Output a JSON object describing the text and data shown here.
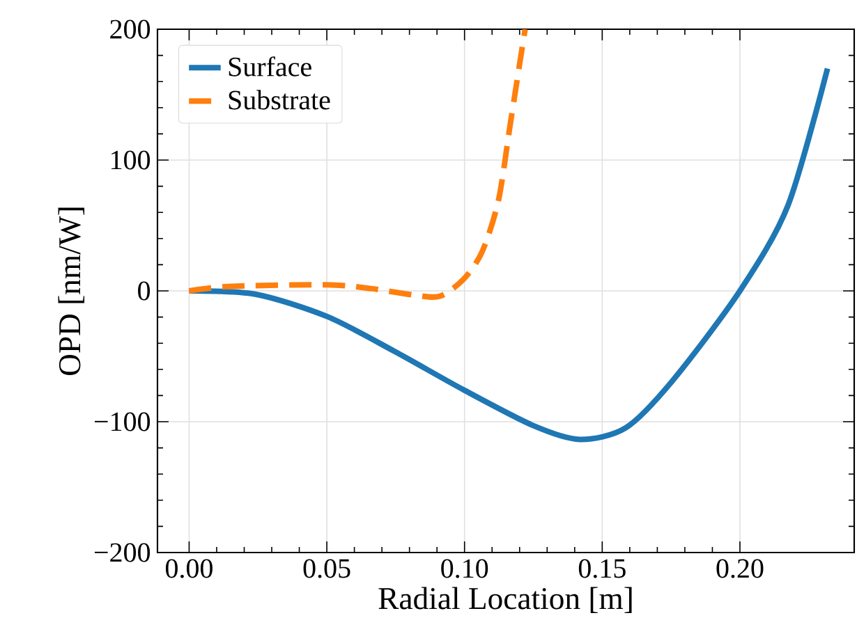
{
  "chart_data": {
    "type": "line",
    "xlabel": "Radial Location [m]",
    "ylabel": "OPD [nm/W]",
    "xlim": [
      -0.0115,
      0.2415
    ],
    "ylim": [
      -200,
      200
    ],
    "xticks": [
      {
        "value": 0,
        "label": "0.00"
      },
      {
        "value": 0.05,
        "label": "0.05"
      },
      {
        "value": 0.1,
        "label": "0.10"
      },
      {
        "value": 0.15,
        "label": "0.15"
      },
      {
        "value": 0.2,
        "label": "0.20"
      }
    ],
    "yticks": [
      {
        "value": -200,
        "label": "−200"
      },
      {
        "value": -100,
        "label": "−100"
      },
      0,
      100,
      200
    ],
    "grid": true,
    "legend": "top left",
    "marker": "none",
    "series": [
      {
        "name": "Surface",
        "color": "#1f77b4",
        "line_style": "solid",
        "x": [
          0,
          0.024,
          0.05,
          0.0744,
          0.1,
          0.125,
          0.1418,
          0.1586,
          0.1754,
          0.2,
          0.2175,
          0.2318
        ],
        "values": [
          0,
          -2.5,
          -19.5,
          -46,
          -76,
          -103,
          -113.5,
          -104.6,
          -69,
          0,
          65.6,
          170
        ]
      },
      {
        "name": "Substrate",
        "color": "#ff7f0e",
        "line_style": "dashed",
        "x": [
          0,
          0.0155,
          0.05,
          0.066,
          0.0828,
          0.0912,
          0.0997,
          0.1064,
          0.1123,
          0.1165,
          0.1199,
          0.122
        ],
        "values": [
          0,
          3.5,
          4.6,
          1.8,
          -3.5,
          -4,
          9,
          30,
          69,
          126,
          172,
          200
        ]
      }
    ]
  }
}
